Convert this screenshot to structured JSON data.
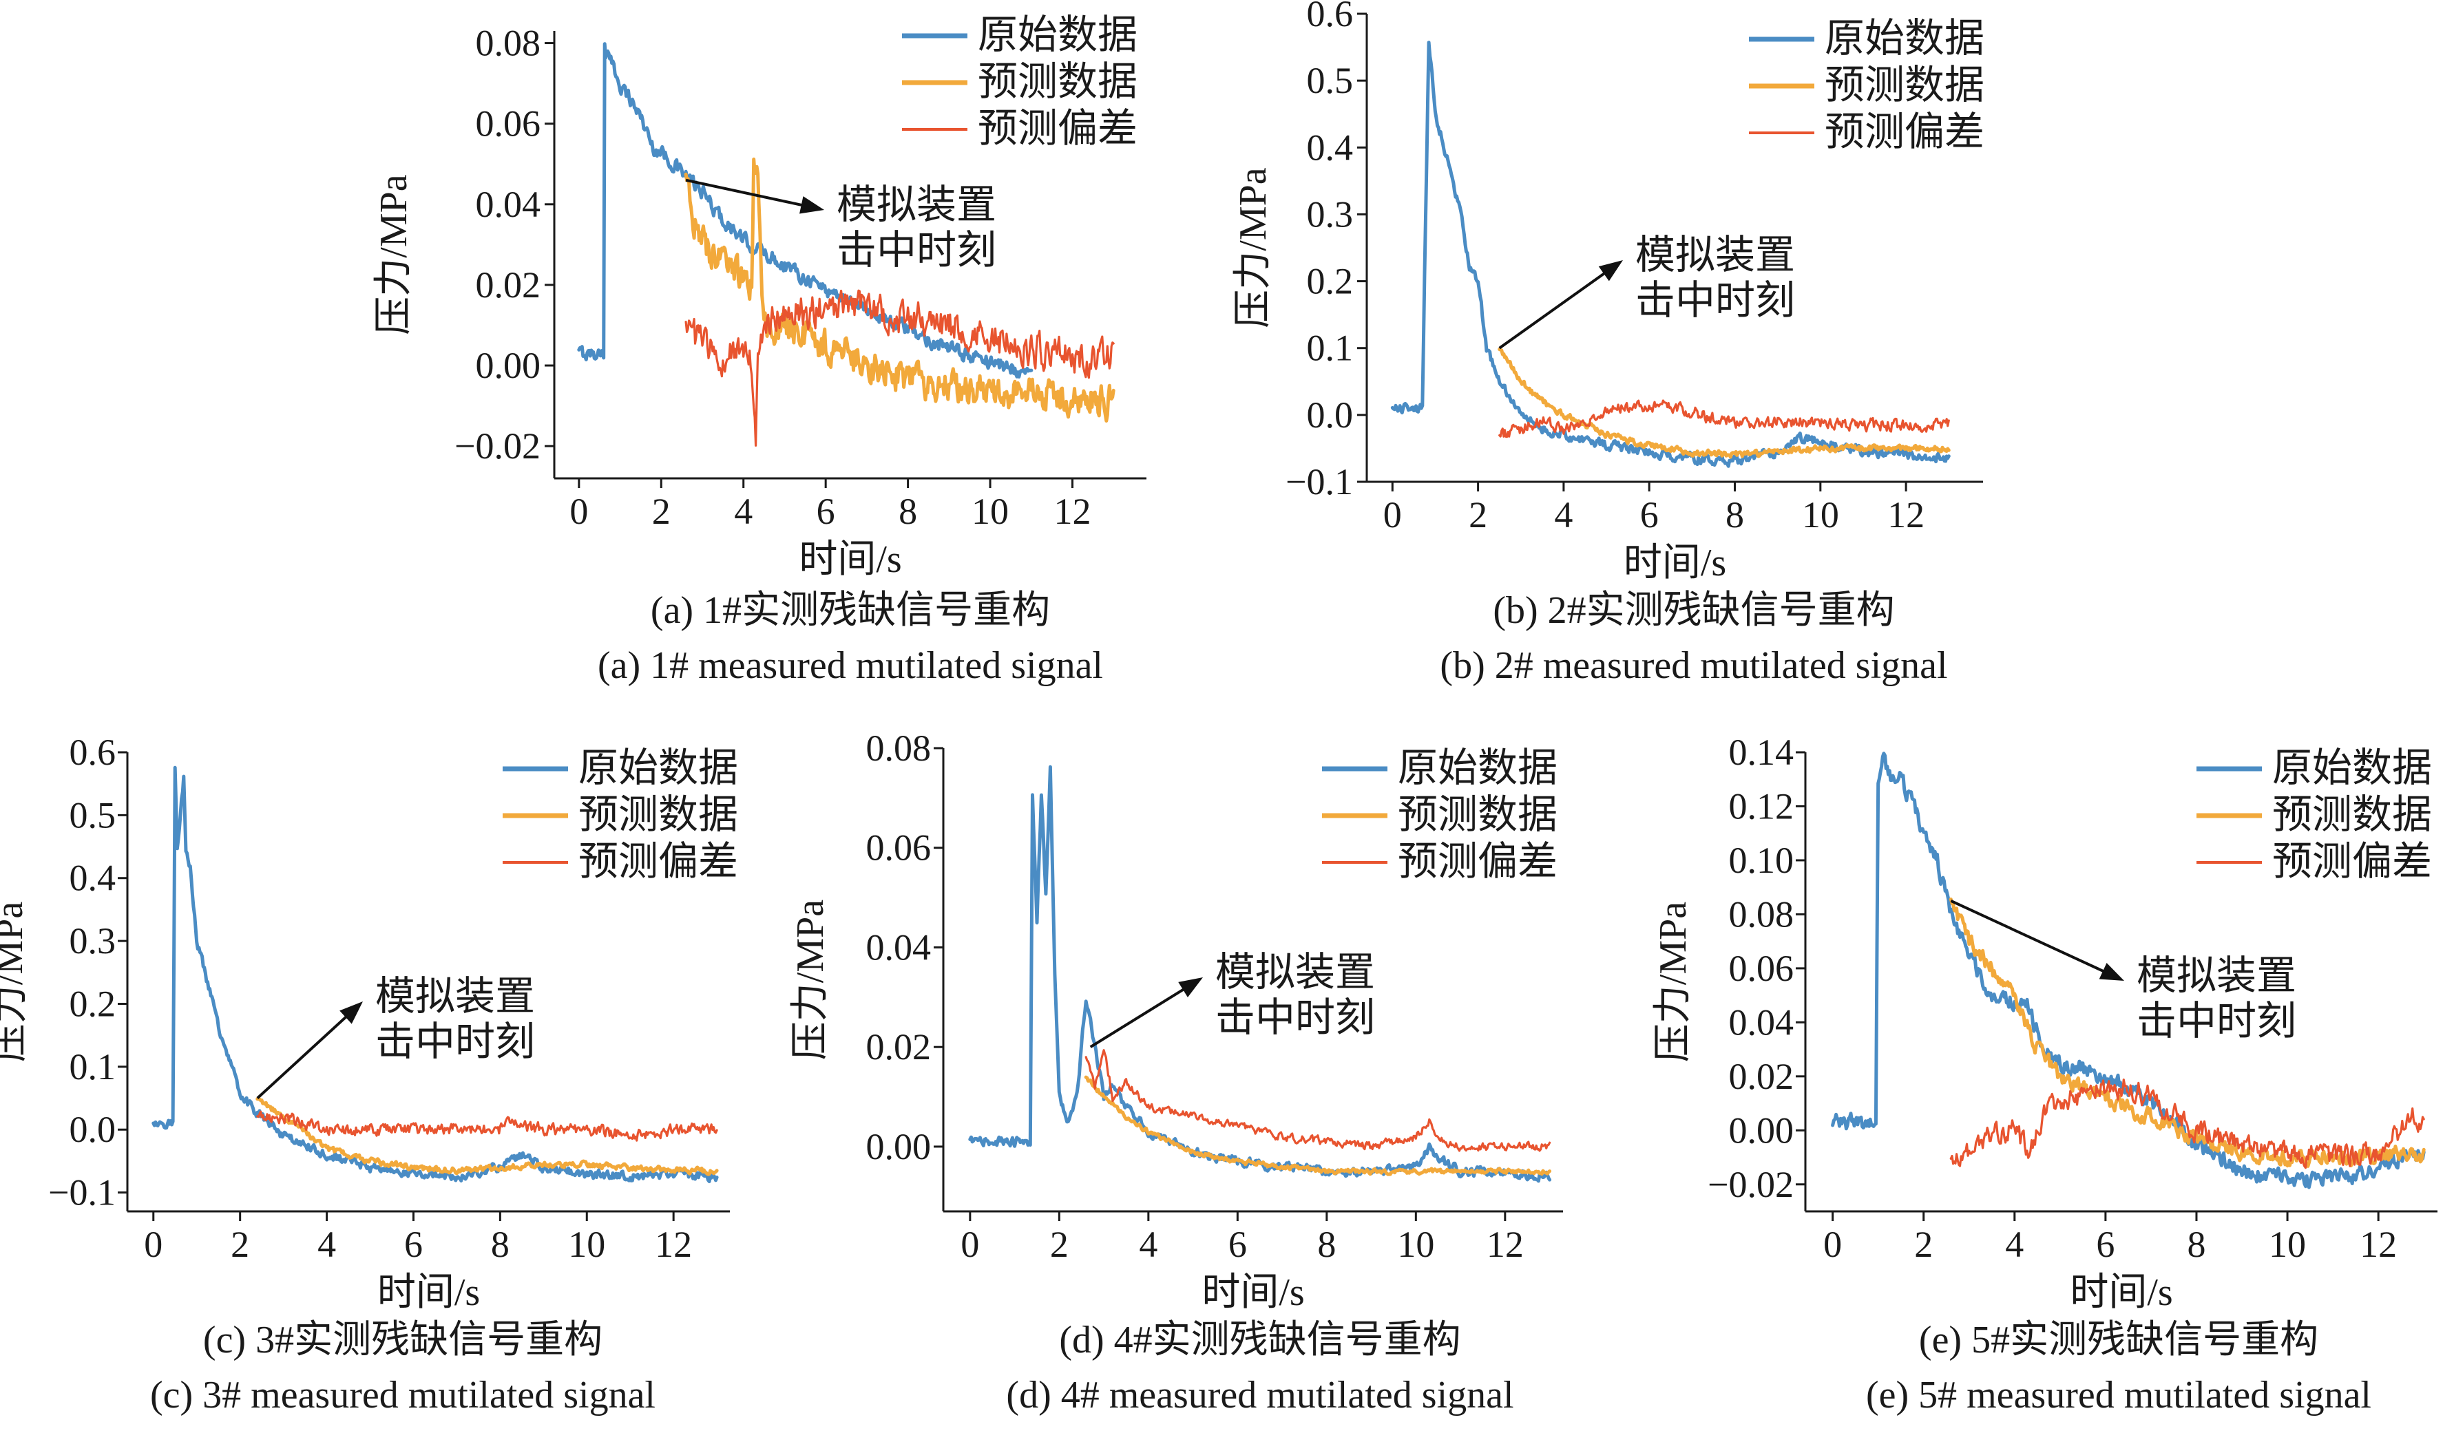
{
  "colors": {
    "original": "#4a8cc4",
    "predicted": "#f2a93b",
    "deviation": "#e8542f"
  },
  "chart_data": [
    {
      "id": "a",
      "type": "line",
      "caption_cn": "(a) 1#实测残缺信号重构",
      "caption_en": "(a) 1# measured mutilated signal",
      "xlabel": "时间/s",
      "ylabel": "压力/MPa",
      "xlim": [
        -0.6,
        13.8
      ],
      "ylim": [
        -0.028,
        0.083
      ],
      "xticks": [
        0,
        2,
        4,
        6,
        8,
        10,
        12
      ],
      "xtick_labels": [
        "0",
        "2",
        "4",
        "6",
        "8",
        "10",
        "12"
      ],
      "yticks": [
        -0.02,
        0,
        0.02,
        0.04,
        0.06,
        0.08
      ],
      "ytick_labels": [
        "−0.02",
        "0.00",
        "0.02",
        "0.04",
        "0.06",
        "0.08"
      ],
      "legend": [
        "原始数据",
        "预测数据",
        "预测偏差"
      ],
      "legend_position": "top-right",
      "annotation": {
        "lines": [
          "模拟装置",
          "击中时刻"
        ],
        "point": [
          2.6,
          0.046
        ]
      },
      "series": [
        {
          "name": "原始数据",
          "color_key": "original",
          "noise": 0.0015,
          "x": [
            0.0,
            0.6,
            0.62,
            0.65,
            1.0,
            1.5,
            1.8,
            2.0,
            2.5,
            3.0,
            3.5,
            4.0,
            5.0,
            6.0,
            7.0,
            8.0,
            9.0,
            10.0,
            11.0
          ],
          "y": [
            0.003,
            0.003,
            0.082,
            0.078,
            0.07,
            0.062,
            0.054,
            0.053,
            0.048,
            0.043,
            0.036,
            0.031,
            0.025,
            0.019,
            0.014,
            0.009,
            0.004,
            0.001,
            -0.002
          ]
        },
        {
          "name": "预测数据",
          "color_key": "predicted",
          "noise": 0.0035,
          "x": [
            2.6,
            3.0,
            3.5,
            4.0,
            4.2,
            4.25,
            4.35,
            4.45,
            4.6,
            5.0,
            6.0,
            7.0,
            8.0,
            9.0,
            10.0,
            11.0,
            12.0,
            13.0
          ],
          "y": [
            0.044,
            0.03,
            0.026,
            0.021,
            0.019,
            0.048,
            0.046,
            0.016,
            0.01,
            0.01,
            0.005,
            0.0,
            -0.003,
            -0.005,
            -0.006,
            -0.007,
            -0.008,
            -0.009
          ]
        },
        {
          "name": "预测偏差",
          "color_key": "deviation",
          "noise": 0.0035,
          "x": [
            2.6,
            3.0,
            3.5,
            4.0,
            4.2,
            4.3,
            4.35,
            4.5,
            5.0,
            6.0,
            7.0,
            8.0,
            9.0,
            10.0,
            11.0,
            12.0,
            13.0
          ],
          "y": [
            0.008,
            0.006,
            0.0,
            0.005,
            0.0,
            -0.02,
            0.002,
            0.01,
            0.013,
            0.014,
            0.014,
            0.012,
            0.01,
            0.007,
            0.004,
            0.002,
            0.002
          ]
        }
      ]
    },
    {
      "id": "b",
      "type": "line",
      "caption_cn": "(b) 2#实测残缺信号重构",
      "caption_en": "(b) 2# measured mutilated signal",
      "xlabel": "时间/s",
      "ylabel": "压力/MPa",
      "xlim": [
        -0.6,
        13.8
      ],
      "ylim": [
        -0.1,
        0.6
      ],
      "xticks": [
        0,
        2,
        4,
        6,
        8,
        10,
        12
      ],
      "xtick_labels": [
        "0",
        "2",
        "4",
        "6",
        "8",
        "10",
        "12"
      ],
      "yticks": [
        -0.1,
        0,
        0.1,
        0.2,
        0.3,
        0.4,
        0.5,
        0.6
      ],
      "ytick_labels": [
        "−0.1",
        "0.0",
        "0.1",
        "0.2",
        "0.3",
        "0.4",
        "0.5",
        "0.6"
      ],
      "legend": [
        "原始数据",
        "预测数据",
        "预测偏差"
      ],
      "legend_position": "top-right",
      "annotation": {
        "lines": [
          "模拟装置",
          "击中时刻"
        ],
        "point": [
          2.5,
          0.1
        ]
      },
      "series": [
        {
          "name": "原始数据",
          "color_key": "original",
          "noise": 0.006,
          "x": [
            0.0,
            0.7,
            0.75,
            0.85,
            1.0,
            1.3,
            1.6,
            1.8,
            2.0,
            2.2,
            2.5,
            3.0,
            3.5,
            4.0,
            5.0,
            6.0,
            7.0,
            8.0,
            9.0,
            9.5,
            10.0,
            11.0,
            12.0,
            13.0
          ],
          "y": [
            0.01,
            0.01,
            0.2,
            0.56,
            0.45,
            0.38,
            0.3,
            0.22,
            0.2,
            0.1,
            0.05,
            0.0,
            -0.02,
            -0.03,
            -0.045,
            -0.055,
            -0.065,
            -0.07,
            -0.055,
            -0.035,
            -0.04,
            -0.055,
            -0.06,
            -0.065
          ]
        },
        {
          "name": "预测数据",
          "color_key": "predicted",
          "noise": 0.004,
          "x": [
            2.5,
            3.0,
            3.5,
            4.0,
            5.0,
            6.0,
            7.0,
            8.0,
            9.0,
            10.0,
            11.0,
            12.0,
            13.0
          ],
          "y": [
            0.1,
            0.05,
            0.02,
            0.0,
            -0.03,
            -0.045,
            -0.055,
            -0.06,
            -0.055,
            -0.05,
            -0.05,
            -0.05,
            -0.05
          ]
        },
        {
          "name": "预测偏差",
          "color_key": "deviation",
          "noise": 0.008,
          "x": [
            2.5,
            3.0,
            3.5,
            4.0,
            5.0,
            6.0,
            7.0,
            8.0,
            9.0,
            10.0,
            11.0,
            12.0,
            13.0
          ],
          "y": [
            -0.03,
            -0.02,
            -0.01,
            -0.02,
            0.005,
            0.015,
            0.005,
            -0.015,
            -0.01,
            -0.01,
            -0.015,
            -0.015,
            -0.015
          ]
        }
      ]
    },
    {
      "id": "c",
      "type": "line",
      "caption_cn": "(c) 3#实测残缺信号重构",
      "caption_en": "(c) 3# measured mutilated signal",
      "xlabel": "时间/s",
      "ylabel": "压力/MPa",
      "xlim": [
        -0.6,
        13.3
      ],
      "ylim": [
        -0.13,
        0.6
      ],
      "xticks": [
        0,
        2,
        4,
        6,
        8,
        10,
        12
      ],
      "xtick_labels": [
        "0",
        "2",
        "4",
        "6",
        "8",
        "10",
        "12"
      ],
      "yticks": [
        -0.1,
        0,
        0.1,
        0.2,
        0.3,
        0.4,
        0.5,
        0.6
      ],
      "ytick_labels": [
        "−0.1",
        "0.0",
        "0.1",
        "0.2",
        "0.3",
        "0.4",
        "0.5",
        "0.6"
      ],
      "legend": [
        "原始数据",
        "预测数据",
        "预测偏差"
      ],
      "legend_position": "top-right",
      "annotation": {
        "lines": [
          "模拟装置",
          "击中时刻"
        ],
        "point": [
          2.4,
          0.05
        ]
      },
      "series": [
        {
          "name": "原始数据",
          "color_key": "original",
          "noise": 0.006,
          "x": [
            0.0,
            0.45,
            0.5,
            0.55,
            0.7,
            0.75,
            0.85,
            1.0,
            1.3,
            1.6,
            1.9,
            2.0,
            2.2,
            2.5,
            3.0,
            4.0,
            5.0,
            6.0,
            7.0,
            8.0,
            8.5,
            9.0,
            10.0,
            11.0,
            12.0,
            13.0
          ],
          "y": [
            0.01,
            0.01,
            0.57,
            0.45,
            0.56,
            0.45,
            0.42,
            0.3,
            0.22,
            0.14,
            0.08,
            0.06,
            0.04,
            0.02,
            -0.01,
            -0.04,
            -0.06,
            -0.07,
            -0.075,
            -0.06,
            -0.04,
            -0.06,
            -0.07,
            -0.075,
            -0.07,
            -0.075
          ]
        },
        {
          "name": "预测数据",
          "color_key": "predicted",
          "noise": 0.004,
          "x": [
            2.4,
            3.0,
            4.0,
            5.0,
            6.0,
            7.0,
            8.0,
            9.0,
            10.0,
            11.0,
            12.0,
            13.0
          ],
          "y": [
            0.05,
            0.02,
            -0.03,
            -0.05,
            -0.06,
            -0.065,
            -0.06,
            -0.055,
            -0.055,
            -0.06,
            -0.065,
            -0.065
          ]
        },
        {
          "name": "预测偏差",
          "color_key": "deviation",
          "noise": 0.008,
          "x": [
            2.4,
            3.0,
            3.5,
            4.0,
            5.0,
            6.0,
            7.0,
            8.0,
            8.3,
            8.6,
            9.0,
            10.0,
            11.0,
            12.0,
            13.0
          ],
          "y": [
            0.02,
            0.02,
            0.01,
            0.0,
            0.0,
            0.0,
            0.0,
            0.0,
            0.02,
            0.005,
            0.0,
            0.0,
            -0.01,
            0.0,
            0.0
          ]
        }
      ]
    },
    {
      "id": "d",
      "type": "line",
      "caption_cn": "(d) 4#实测残缺信号重构",
      "caption_en": "(d) 4# measured mutilated signal",
      "xlabel": "时间/s",
      "ylabel": "压力/MPa",
      "xlim": [
        -0.6,
        13.3
      ],
      "ylim": [
        -0.013,
        0.08
      ],
      "xticks": [
        0,
        2,
        4,
        6,
        8,
        10,
        12
      ],
      "xtick_labels": [
        "0",
        "2",
        "4",
        "6",
        "8",
        "10",
        "12"
      ],
      "yticks": [
        0,
        0.02,
        0.04,
        0.06,
        0.08
      ],
      "ytick_labels": [
        "0.00",
        "0.02",
        "0.04",
        "0.06",
        "0.08"
      ],
      "legend": [
        "原始数据",
        "预测数据",
        "预测偏差"
      ],
      "legend_position": "top-right",
      "annotation": {
        "lines": [
          "模拟装置",
          "击中时刻"
        ],
        "point": [
          2.7,
          0.02
        ]
      },
      "series": [
        {
          "name": "原始数据",
          "color_key": "original",
          "noise": 0.0008,
          "x": [
            0.0,
            1.35,
            1.4,
            1.5,
            1.6,
            1.7,
            1.8,
            1.9,
            2.0,
            2.2,
            2.4,
            2.6,
            2.7,
            2.8,
            3.0,
            3.2,
            3.5,
            4.0,
            5.0,
            6.0,
            7.0,
            8.0,
            9.0,
            10.0,
            10.3,
            10.6,
            11.0,
            12.0,
            13.0
          ],
          "y": [
            0.001,
            0.001,
            0.07,
            0.045,
            0.07,
            0.05,
            0.077,
            0.035,
            0.01,
            0.005,
            0.01,
            0.03,
            0.025,
            0.02,
            0.01,
            0.012,
            0.008,
            0.003,
            -0.001,
            -0.003,
            -0.004,
            -0.005,
            -0.005,
            -0.004,
            0.0,
            -0.003,
            -0.005,
            -0.005,
            -0.006
          ]
        },
        {
          "name": "预测数据",
          "color_key": "predicted",
          "noise": 0.0004,
          "x": [
            2.6,
            3.0,
            3.5,
            4.0,
            5.0,
            6.0,
            7.0,
            8.0,
            9.0,
            10.0,
            11.0,
            12.0,
            13.0
          ],
          "y": [
            0.014,
            0.01,
            0.006,
            0.003,
            -0.001,
            -0.003,
            -0.004,
            -0.005,
            -0.005,
            -0.005,
            -0.005,
            -0.005,
            -0.005
          ]
        },
        {
          "name": "预测偏差",
          "color_key": "deviation",
          "noise": 0.0007,
          "x": [
            2.6,
            2.8,
            3.0,
            3.2,
            3.5,
            4.0,
            5.0,
            6.0,
            7.0,
            8.0,
            9.0,
            10.0,
            10.3,
            10.6,
            11.0,
            12.0,
            13.0
          ],
          "y": [
            0.018,
            0.012,
            0.02,
            0.01,
            0.013,
            0.008,
            0.006,
            0.004,
            0.002,
            0.001,
            0.0,
            0.002,
            0.005,
            0.001,
            0.0,
            0.0,
            0.0
          ]
        }
      ]
    },
    {
      "id": "e",
      "type": "line",
      "caption_cn": "(e) 5#实测残缺信号重构",
      "caption_en": "(e) 5# measured mutilated signal",
      "xlabel": "时间/s",
      "ylabel": "压力/MPa",
      "xlim": [
        -0.6,
        13.3
      ],
      "ylim": [
        -0.03,
        0.14
      ],
      "xticks": [
        0,
        2,
        4,
        6,
        8,
        10,
        12
      ],
      "xtick_labels": [
        "0",
        "2",
        "4",
        "6",
        "8",
        "10",
        "12"
      ],
      "yticks": [
        -0.02,
        0,
        0.02,
        0.04,
        0.06,
        0.08,
        0.1,
        0.12,
        0.14
      ],
      "ytick_labels": [
        "−0.02",
        "0.00",
        "0.02",
        "0.04",
        "0.06",
        "0.08",
        "0.10",
        "0.12",
        "0.14"
      ],
      "legend": [
        "原始数据",
        "预测数据",
        "预测偏差"
      ],
      "legend_position": "top-right",
      "annotation": {
        "lines": [
          "模拟装置",
          "击中时刻"
        ],
        "point": [
          2.6,
          0.085
        ]
      },
      "series": [
        {
          "name": "原始数据",
          "color_key": "original",
          "noise": 0.0025,
          "x": [
            0.0,
            0.95,
            1.0,
            1.1,
            1.3,
            1.5,
            1.8,
            2.0,
            2.3,
            2.6,
            3.0,
            3.5,
            4.0,
            4.3,
            4.6,
            5.0,
            6.0,
            7.0,
            8.0,
            9.0,
            10.0,
            11.0,
            12.0,
            12.5,
            13.0
          ],
          "y": [
            0.003,
            0.003,
            0.13,
            0.138,
            0.13,
            0.13,
            0.12,
            0.11,
            0.1,
            0.08,
            0.065,
            0.05,
            0.048,
            0.046,
            0.03,
            0.025,
            0.02,
            0.01,
            -0.005,
            -0.015,
            -0.018,
            -0.018,
            -0.015,
            -0.01,
            -0.01
          ]
        },
        {
          "name": "预测数据",
          "color_key": "predicted",
          "noise": 0.0025,
          "x": [
            2.6,
            3.0,
            3.5,
            4.0,
            4.5,
            5.0,
            6.0,
            7.0,
            8.0,
            9.0,
            10.0,
            11.0,
            12.0,
            12.5,
            13.0
          ],
          "y": [
            0.085,
            0.07,
            0.06,
            0.05,
            0.03,
            0.02,
            0.012,
            0.005,
            -0.003,
            -0.008,
            -0.01,
            -0.01,
            -0.01,
            -0.008,
            -0.01
          ]
        },
        {
          "name": "预测偏差",
          "color_key": "deviation",
          "noise": 0.0035,
          "x": [
            2.6,
            3.0,
            3.5,
            4.0,
            4.3,
            4.6,
            5.0,
            6.0,
            6.5,
            7.0,
            8.0,
            9.0,
            10.0,
            11.0,
            12.0,
            12.5,
            12.8,
            13.0
          ],
          "y": [
            -0.01,
            -0.008,
            -0.002,
            0.0,
            -0.008,
            0.005,
            0.01,
            0.015,
            0.016,
            0.012,
            0.0,
            -0.005,
            -0.008,
            -0.01,
            -0.008,
            0.0,
            0.006,
            0.002
          ]
        }
      ]
    }
  ]
}
